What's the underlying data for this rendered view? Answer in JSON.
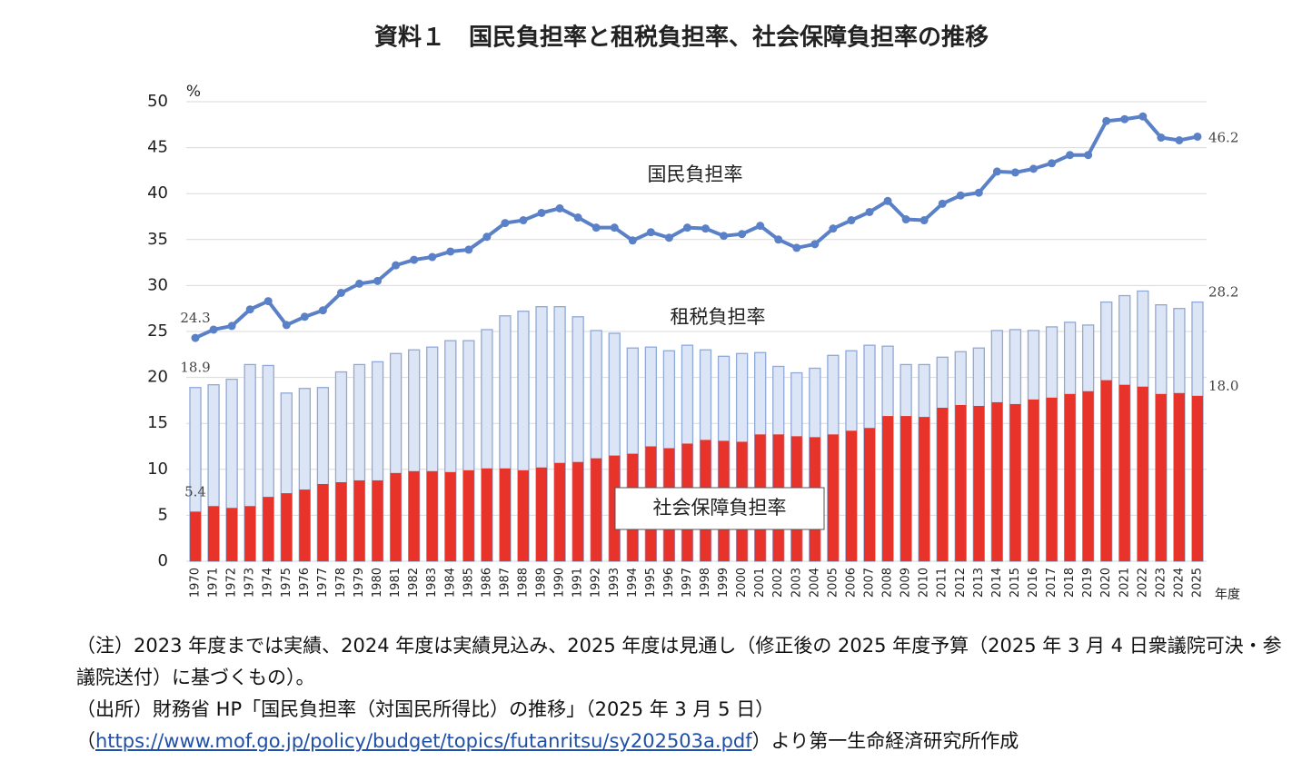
{
  "chart_data": {
    "type": "combo",
    "title": "資料１　国民負担率と租税負担率、社会保障負担率の推移",
    "y_unit": "%",
    "x_label": "年度",
    "categories": [
      "1970",
      "1971",
      "1972",
      "1973",
      "1974",
      "1975",
      "1976",
      "1977",
      "1978",
      "1979",
      "1980",
      "1981",
      "1982",
      "1983",
      "1984",
      "1985",
      "1986",
      "1987",
      "1988",
      "1989",
      "1990",
      "1991",
      "1992",
      "1993",
      "1994",
      "1995",
      "1996",
      "1997",
      "1998",
      "1999",
      "2000",
      "2001",
      "2002",
      "2003",
      "2004",
      "2005",
      "2006",
      "2007",
      "2008",
      "2009",
      "2010",
      "2011",
      "2012",
      "2013",
      "2014",
      "2015",
      "2016",
      "2017",
      "2018",
      "2019",
      "2020",
      "2021",
      "2022",
      "2023",
      "2024",
      "2025"
    ],
    "series": [
      {
        "name": "国民負担率",
        "type": "line",
        "color": "#5a80c8",
        "values": [
          24.3,
          25.2,
          25.6,
          27.4,
          28.3,
          25.7,
          26.6,
          27.3,
          29.2,
          30.2,
          30.5,
          32.2,
          32.8,
          33.1,
          33.7,
          33.9,
          35.3,
          36.8,
          37.1,
          37.9,
          38.4,
          37.4,
          36.3,
          36.3,
          34.9,
          35.8,
          35.2,
          36.3,
          36.2,
          35.4,
          35.6,
          36.5,
          35.0,
          34.1,
          34.5,
          36.2,
          37.1,
          38.0,
          39.2,
          37.2,
          37.1,
          38.9,
          39.8,
          40.1,
          42.4,
          42.3,
          42.7,
          43.3,
          44.2,
          44.2,
          47.9,
          48.1,
          48.4,
          46.1,
          45.8,
          46.2
        ],
        "value_labels": [
          "24.3",
          null,
          null,
          null,
          null,
          null,
          null,
          null,
          null,
          null,
          null,
          null,
          null,
          null,
          null,
          null,
          null,
          null,
          null,
          null,
          null,
          null,
          null,
          null,
          null,
          null,
          null,
          null,
          null,
          null,
          null,
          null,
          null,
          null,
          null,
          null,
          null,
          null,
          null,
          null,
          null,
          null,
          null,
          null,
          null,
          null,
          null,
          null,
          null,
          null,
          null,
          null,
          null,
          null,
          null,
          "46.2"
        ]
      },
      {
        "name": "租税負担率",
        "type": "bar",
        "color": "#dce5f5",
        "edge_color": "#8fa9d8",
        "values": [
          18.9,
          19.2,
          19.8,
          21.4,
          21.3,
          18.3,
          18.8,
          18.9,
          20.6,
          21.4,
          21.7,
          22.6,
          23.0,
          23.3,
          24.0,
          24.0,
          25.2,
          26.7,
          27.2,
          27.7,
          27.7,
          26.6,
          25.1,
          24.8,
          23.2,
          23.3,
          22.9,
          23.5,
          23.0,
          22.3,
          22.6,
          22.7,
          21.2,
          20.5,
          21.0,
          22.4,
          22.9,
          23.5,
          23.4,
          21.4,
          21.4,
          22.2,
          22.8,
          23.2,
          25.1,
          25.2,
          25.1,
          25.5,
          26.0,
          25.7,
          28.2,
          28.9,
          29.4,
          27.9,
          27.5,
          28.2
        ],
        "value_labels": [
          "18.9",
          null,
          null,
          null,
          null,
          null,
          null,
          null,
          null,
          null,
          null,
          null,
          null,
          null,
          null,
          null,
          null,
          null,
          null,
          null,
          null,
          null,
          null,
          null,
          null,
          null,
          null,
          null,
          null,
          null,
          null,
          null,
          null,
          null,
          null,
          null,
          null,
          null,
          null,
          null,
          null,
          null,
          null,
          null,
          null,
          null,
          null,
          null,
          null,
          null,
          null,
          null,
          null,
          null,
          null,
          "28.2"
        ]
      },
      {
        "name": "社会保障負担率",
        "type": "bar",
        "color": "#e8332a",
        "values": [
          5.4,
          6.0,
          5.8,
          6.0,
          7.0,
          7.4,
          7.8,
          8.4,
          8.6,
          8.8,
          8.8,
          9.6,
          9.8,
          9.8,
          9.7,
          9.9,
          10.1,
          10.1,
          9.9,
          10.2,
          10.7,
          10.8,
          11.2,
          11.5,
          11.7,
          12.5,
          12.3,
          12.8,
          13.2,
          13.1,
          13.0,
          13.8,
          13.8,
          13.6,
          13.5,
          13.8,
          14.2,
          14.5,
          15.8,
          15.8,
          15.7,
          16.7,
          17.0,
          16.9,
          17.3,
          17.1,
          17.6,
          17.8,
          18.2,
          18.5,
          19.7,
          19.2,
          19.0,
          18.2,
          18.3,
          18.0
        ],
        "value_labels": [
          "5.4",
          null,
          null,
          null,
          null,
          null,
          null,
          null,
          null,
          null,
          null,
          null,
          null,
          null,
          null,
          null,
          null,
          null,
          null,
          null,
          null,
          null,
          null,
          null,
          null,
          null,
          null,
          null,
          null,
          null,
          null,
          null,
          null,
          null,
          null,
          null,
          null,
          null,
          null,
          null,
          null,
          null,
          null,
          null,
          null,
          null,
          null,
          null,
          null,
          null,
          null,
          null,
          null,
          null,
          null,
          "18.0"
        ]
      }
    ],
    "ylim": [
      0,
      50
    ],
    "yticks": [
      0,
      5,
      10,
      15,
      20,
      25,
      30,
      35,
      40,
      45,
      50
    ],
    "grid": true
  },
  "notes": {
    "note": "（注）2023 年度までは実績、2024 年度は実績見込み、2025 年度は見通し（修正後の 2025 年度予算（2025 年 3 月 4 日衆議院可決・参議院送付）に基づくもの）。",
    "source": "（出所）財務省 HP「国民負担率（対国民所得比）の推移」（2025 年 3 月 5 日）",
    "link_open": "（",
    "link": "https://www.mof.go.jp/policy/budget/topics/futanritsu/sy202503a.pdf",
    "link_close": "）より第一生命経済研究所作成"
  }
}
